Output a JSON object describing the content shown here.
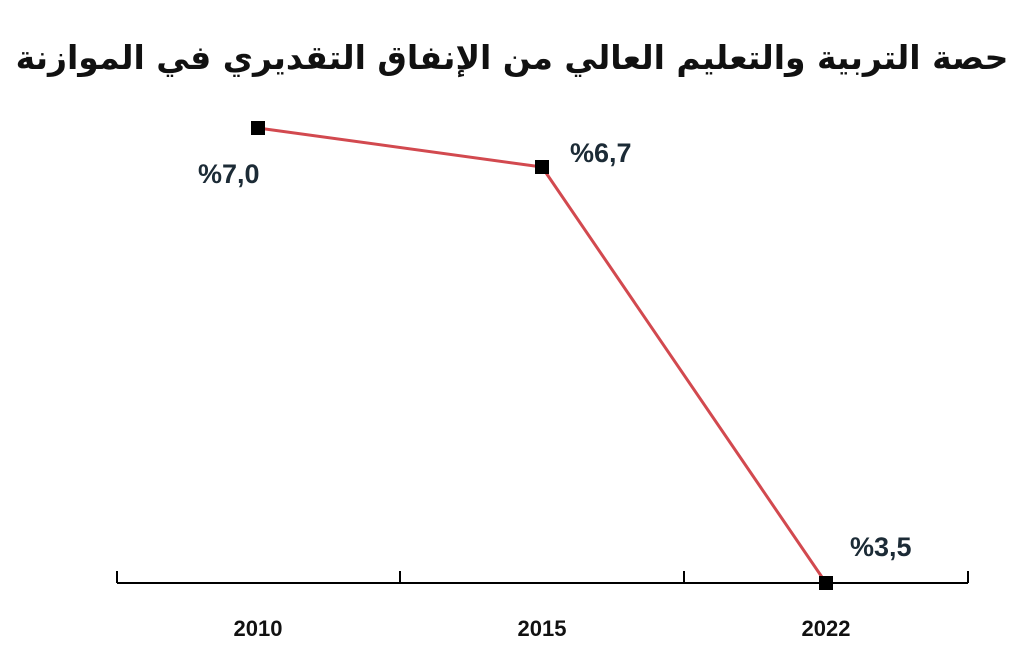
{
  "chart_data": {
    "type": "line",
    "title": "حصة التربية والتعليم العالي من الإنفاق التقديري في الموازنة",
    "categories": [
      "2010",
      "2015",
      "2022"
    ],
    "series": [
      {
        "values": [
          7.0,
          6.7,
          3.5
        ],
        "labels": [
          "%7,0",
          "%6,7",
          "%3,5"
        ]
      }
    ],
    "ylim": [
      3.5,
      7.0
    ],
    "grid": false,
    "colors": {
      "line": "#d2494f",
      "marker": "#000000",
      "axis": "#000000"
    }
  }
}
